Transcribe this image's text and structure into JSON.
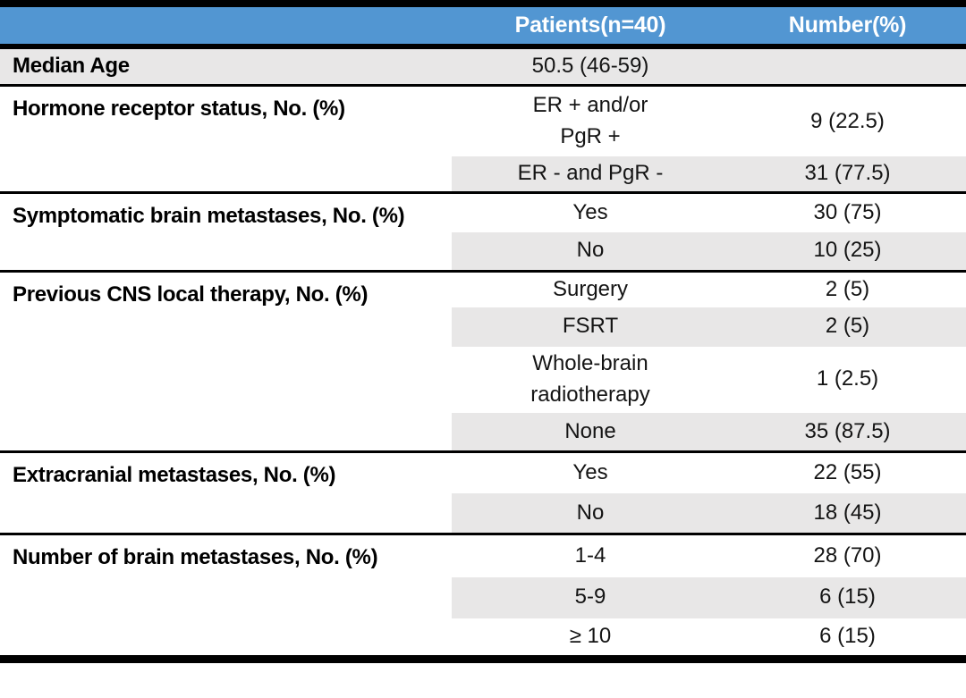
{
  "table": {
    "header": {
      "patients_label": "Patients(n=40)",
      "number_label": "Number(%)"
    },
    "sections": [
      {
        "label": "Median Age",
        "entries": [
          {
            "value": "50.5 (46-59)",
            "number": ""
          }
        ]
      },
      {
        "label": "Hormone receptor status, No. (%)",
        "entries": [
          {
            "value": "ER + and/or\nPgR +",
            "number": "9 (22.5)"
          },
          {
            "value": "ER - and PgR -",
            "number": "31 (77.5)"
          }
        ]
      },
      {
        "label": "Symptomatic brain metastases, No. (%)",
        "entries": [
          {
            "value": "Yes",
            "number": "30 (75)"
          },
          {
            "value": "No",
            "number": "10 (25)"
          }
        ]
      },
      {
        "label": "Previous CNS local therapy, No. (%)",
        "entries": [
          {
            "value": "Surgery",
            "number": "2 (5)"
          },
          {
            "value": "FSRT",
            "number": "2 (5)"
          },
          {
            "value": "Whole-brain\nradiotherapy",
            "number": "1 (2.5)"
          },
          {
            "value": "None",
            "number": "35 (87.5)"
          }
        ]
      },
      {
        "label": "Extracranial metastases, No. (%)",
        "entries": [
          {
            "value": "Yes",
            "number": "22 (55)"
          },
          {
            "value": "No",
            "number": "18 (45)"
          }
        ]
      },
      {
        "label": "Number of brain metastases, No. (%)",
        "entries": [
          {
            "value": "1-4",
            "number": "28 (70)"
          },
          {
            "value": "5-9",
            "number": "6 (15)"
          },
          {
            "value": "≥ 10",
            "number": "6 (15)"
          }
        ]
      }
    ]
  },
  "colors": {
    "header_bg": "#5296D2",
    "header_text": "#FFFFFF",
    "band_bg": "#E8E7E7",
    "rule": "#000000"
  }
}
